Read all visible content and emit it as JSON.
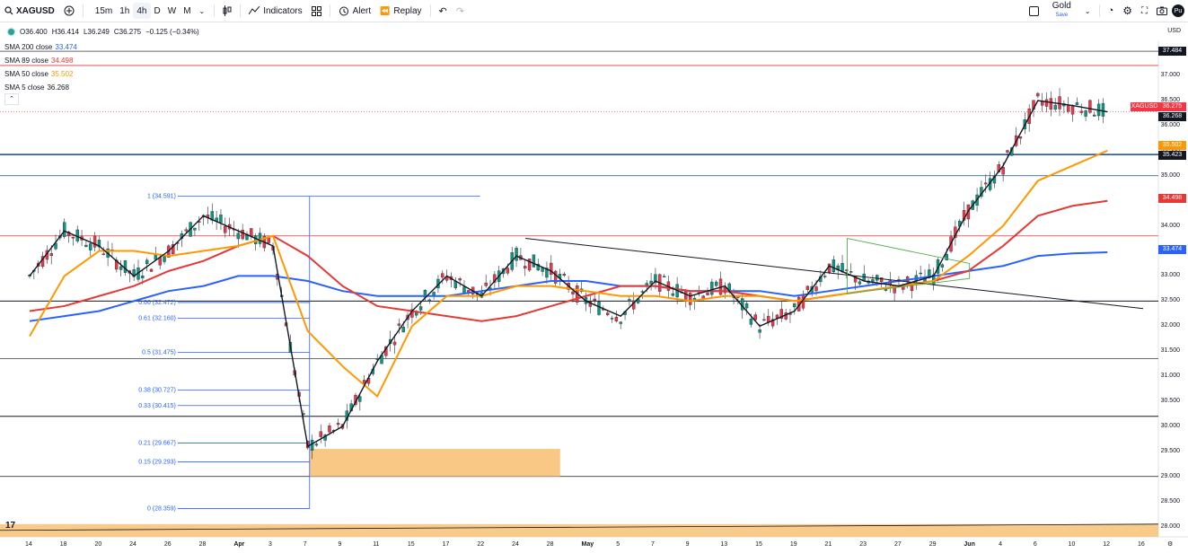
{
  "toolbar": {
    "symbol": "XAGUSD",
    "timeframes": [
      "15m",
      "1h",
      "4h",
      "D",
      "W",
      "M"
    ],
    "active_tf": "4h",
    "indicators_label": "Indicators",
    "alert_label": "Alert",
    "replay_label": "Replay",
    "gold_label": "Gold",
    "gold_sub": "Save",
    "avatar": "Pu"
  },
  "ohlc": {
    "o": "O36.400",
    "h": "H36.414",
    "l": "L36.249",
    "c": "C36.275",
    "chg": "−0.125 (−0.34%)"
  },
  "smas": [
    {
      "label": "SMA 200 close",
      "value": "33.474",
      "color": "#2962ff"
    },
    {
      "label": "SMA 89 close",
      "value": "34.498",
      "color": "#e53935"
    },
    {
      "label": "SMA 50 close",
      "value": "35.502",
      "color": "#ff9800"
    },
    {
      "label": "SMA 5 close",
      "value": "36.268",
      "color": "#131722"
    }
  ],
  "currency": "USD",
  "price_axis": [
    "37.000",
    "36.500",
    "36.000",
    "35.500",
    "35.000",
    "34.500",
    "34.000",
    "33.500",
    "33.000",
    "32.500",
    "32.000",
    "31.500",
    "31.000",
    "30.500",
    "30.000",
    "29.500",
    "29.000",
    "28.500",
    "28.000"
  ],
  "tags": [
    {
      "text": "37.484",
      "bg": "#131722"
    },
    {
      "text": "XAGUSD",
      "bg": "#f23645"
    },
    {
      "text": "36.275",
      "bg": "#f23645"
    },
    {
      "text": "36.268",
      "bg": "#131722"
    },
    {
      "text": "35.502",
      "bg": "#ff9800"
    },
    {
      "text": "35.423",
      "bg": "#131722"
    },
    {
      "text": "34.498",
      "bg": "#e53935"
    },
    {
      "text": "33.474",
      "bg": "#2962ff"
    }
  ],
  "fib": [
    "1 (34.591)",
    "0.66 (32.472)",
    "0.61 (32.160)",
    "0.5 (31.475)",
    "0.38 (30.727)",
    "0.33 (30.415)",
    "0.21 (29.667)",
    "0.15 (29.293)",
    "0 (28.359)"
  ],
  "x_axis": [
    "14",
    "18",
    "20",
    "24",
    "26",
    "28",
    "Apr",
    "3",
    "7",
    "9",
    "11",
    "15",
    "17",
    "22",
    "24",
    "28",
    "May",
    "5",
    "7",
    "9",
    "13",
    "15",
    "19",
    "21",
    "23",
    "27",
    "29",
    "Jun",
    "4",
    "6",
    "10",
    "12",
    "16"
  ],
  "chart_data": {
    "type": "candlestick",
    "symbol": "XAGUSD",
    "x": [
      "14",
      "18",
      "20",
      "24",
      "26",
      "28",
      "Apr",
      "3",
      "7",
      "9",
      "11",
      "15",
      "17",
      "22",
      "24",
      "28",
      "May",
      "5",
      "7",
      "9",
      "13",
      "15",
      "19",
      "21",
      "23",
      "27",
      "29",
      "Jun",
      "4",
      "6",
      "10",
      "12"
    ],
    "close": [
      33.0,
      33.9,
      33.6,
      33.0,
      33.5,
      34.2,
      33.9,
      33.6,
      29.6,
      30.0,
      31.3,
      32.3,
      33.0,
      32.6,
      33.4,
      33.1,
      32.5,
      32.2,
      32.9,
      32.6,
      32.8,
      32.0,
      32.3,
      33.2,
      32.9,
      32.8,
      33.0,
      34.3,
      35.2,
      36.5,
      36.4,
      36.275
    ],
    "sma50": [
      31.8,
      33.0,
      33.5,
      33.5,
      33.4,
      33.5,
      33.6,
      33.8,
      31.9,
      31.2,
      30.6,
      32.0,
      32.6,
      32.6,
      32.8,
      32.8,
      32.7,
      32.6,
      32.6,
      32.5,
      32.6,
      32.6,
      32.5,
      32.6,
      32.7,
      32.8,
      32.9,
      33.4,
      34.0,
      34.9,
      35.2,
      35.502
    ],
    "sma89": [
      32.3,
      32.4,
      32.6,
      32.8,
      33.1,
      33.3,
      33.6,
      33.8,
      33.4,
      32.8,
      32.4,
      32.3,
      32.2,
      32.1,
      32.2,
      32.4,
      32.6,
      32.8,
      32.8,
      32.7,
      32.7,
      32.6,
      32.5,
      32.6,
      32.7,
      32.8,
      32.9,
      33.1,
      33.6,
      34.2,
      34.4,
      34.498
    ],
    "sma200": [
      32.1,
      32.2,
      32.3,
      32.5,
      32.7,
      32.8,
      33.0,
      33.0,
      32.9,
      32.7,
      32.6,
      32.6,
      32.6,
      32.7,
      32.8,
      32.9,
      32.9,
      32.8,
      32.8,
      32.7,
      32.7,
      32.7,
      32.6,
      32.7,
      32.8,
      32.9,
      33.0,
      33.1,
      33.2,
      33.4,
      33.45,
      33.474
    ],
    "horizontal_levels": [
      37.484,
      37.2,
      35.423,
      35.0,
      33.8,
      32.5,
      31.35,
      30.2,
      29.0
    ],
    "fib_levels": [
      {
        "ratio": "1",
        "price": 34.591
      },
      {
        "ratio": "0.66",
        "price": 32.472
      },
      {
        "ratio": "0.61",
        "price": 32.16
      },
      {
        "ratio": "0.5",
        "price": 31.475
      },
      {
        "ratio": "0.38",
        "price": 30.727
      },
      {
        "ratio": "0.33",
        "price": 30.415
      },
      {
        "ratio": "0.21",
        "price": 29.667
      },
      {
        "ratio": "0.15",
        "price": 29.293
      },
      {
        "ratio": "0",
        "price": 28.359
      }
    ],
    "demand_zone": [
      29.0,
      29.55
    ],
    "last_price": 36.275,
    "ylim": [
      27.85,
      37.7
    ]
  }
}
